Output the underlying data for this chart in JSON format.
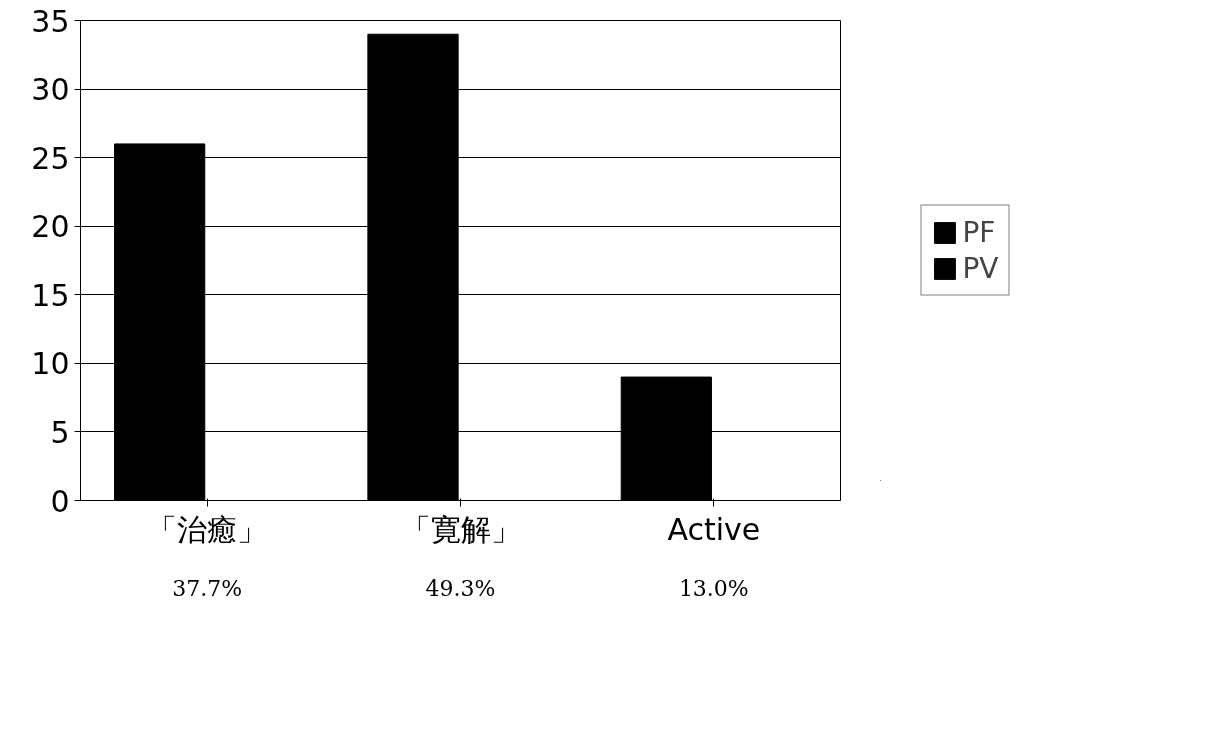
{
  "chart_data": {
    "type": "bar",
    "categories": [
      "「治癒」",
      "「寛解」",
      "Active"
    ],
    "series": [
      {
        "name": "PF",
        "color": "#000000",
        "values": [
          26,
          34,
          9
        ]
      },
      {
        "name": "PV",
        "color": "#000000",
        "values": [
          null,
          null,
          null
        ]
      }
    ],
    "ylim": [
      0,
      35
    ],
    "yticks": [
      0,
      5,
      10,
      15,
      20,
      25,
      30,
      35
    ],
    "grid": "y",
    "legend": "right",
    "annotations": [
      "37.7%",
      "49.3%",
      "13.0%"
    ]
  }
}
